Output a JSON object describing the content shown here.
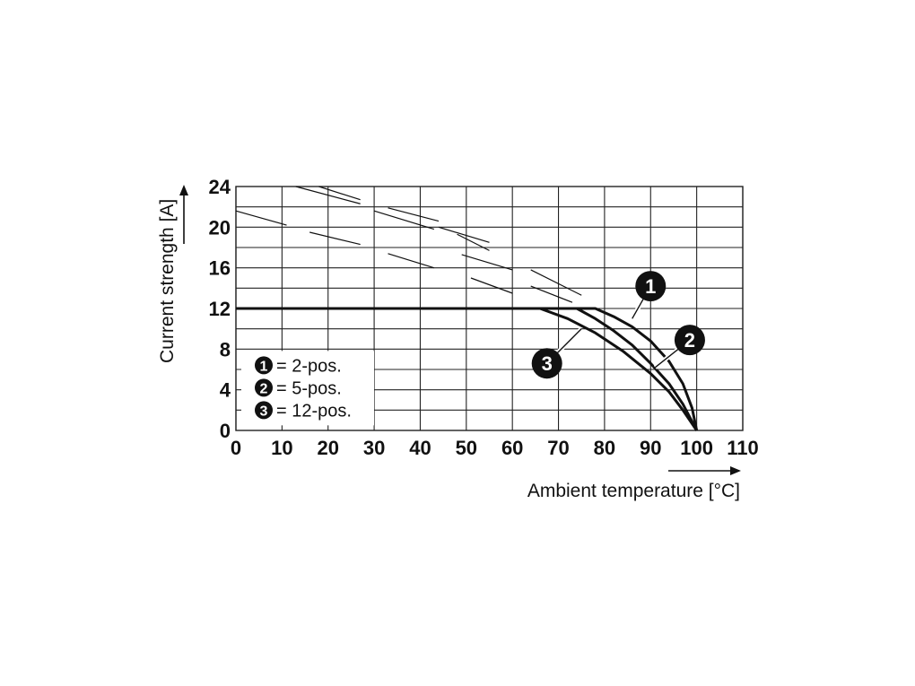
{
  "chart_data": {
    "type": "line",
    "xlabel": "Ambient temperature [°C]",
    "ylabel": "Current strength [A]",
    "xlim": [
      0,
      110
    ],
    "ylim": [
      0,
      24
    ],
    "x_ticks": [
      "0",
      "10",
      "20",
      "30",
      "40",
      "50",
      "60",
      "70",
      "80",
      "90",
      "100",
      "110"
    ],
    "y_ticks": [
      "0",
      "4",
      "8",
      "12",
      "16",
      "20",
      "24"
    ],
    "grid": true,
    "legend_position": "bottom-left",
    "legend": [
      {
        "marker": "1",
        "text": "= 2-pos."
      },
      {
        "marker": "2",
        "text": "= 5-pos."
      },
      {
        "marker": "3",
        "text": "= 12-pos."
      }
    ],
    "series": [
      {
        "marker": "1",
        "points": [
          [
            0,
            12
          ],
          [
            78,
            12
          ],
          [
            82,
            11.2
          ],
          [
            86,
            10.2
          ],
          [
            90,
            8.8
          ],
          [
            94,
            6.8
          ],
          [
            97,
            4.6
          ],
          [
            99,
            2.2
          ],
          [
            100,
            0
          ]
        ]
      },
      {
        "marker": "2",
        "points": [
          [
            0,
            12
          ],
          [
            74,
            12
          ],
          [
            78,
            11.0
          ],
          [
            82,
            9.8
          ],
          [
            86,
            8.4
          ],
          [
            90,
            6.6
          ],
          [
            94,
            4.6
          ],
          [
            97,
            2.6
          ],
          [
            100,
            0
          ]
        ]
      },
      {
        "marker": "3",
        "points": [
          [
            0,
            12
          ],
          [
            66,
            12
          ],
          [
            72,
            11.0
          ],
          [
            78,
            9.6
          ],
          [
            84,
            7.8
          ],
          [
            90,
            5.6
          ],
          [
            94,
            3.8
          ],
          [
            97,
            2.0
          ],
          [
            100,
            0
          ]
        ]
      }
    ],
    "dashed_curves": [
      {
        "points": [
          [
            0,
            21.6
          ],
          [
            11,
            20.2
          ]
        ]
      },
      {
        "points": [
          [
            13,
            24
          ],
          [
            27,
            22.3
          ]
        ]
      },
      {
        "points": [
          [
            18,
            24
          ],
          [
            27,
            22.7
          ]
        ]
      },
      {
        "points": [
          [
            16,
            19.5
          ],
          [
            27,
            18.3
          ]
        ]
      },
      {
        "points": [
          [
            30,
            21.6
          ],
          [
            43,
            19.8
          ]
        ]
      },
      {
        "points": [
          [
            33,
            21.9
          ],
          [
            44,
            20.6
          ]
        ]
      },
      {
        "points": [
          [
            44,
            20.0
          ],
          [
            55,
            18.5
          ]
        ]
      },
      {
        "points": [
          [
            48,
            19.3
          ],
          [
            55,
            17.7
          ]
        ]
      },
      {
        "points": [
          [
            33,
            17.4
          ],
          [
            43,
            16.0
          ]
        ]
      },
      {
        "points": [
          [
            49,
            17.3
          ],
          [
            60,
            15.8
          ]
        ]
      },
      {
        "points": [
          [
            51,
            15.0
          ],
          [
            60,
            13.5
          ]
        ]
      },
      {
        "points": [
          [
            64,
            15.8
          ],
          [
            75,
            13.3
          ]
        ]
      },
      {
        "points": [
          [
            64,
            14.2
          ],
          [
            73,
            12.6
          ]
        ]
      }
    ],
    "callouts": [
      {
        "marker": "1",
        "value": [
          90,
          14.2
        ],
        "leader_to": [
          86,
          11.0
        ]
      },
      {
        "marker": "2",
        "value": [
          98.5,
          8.9
        ],
        "leader_to": [
          91,
          6.2
        ]
      },
      {
        "marker": "3",
        "value": [
          67.5,
          6.6
        ],
        "leader_to": [
          75,
          10.0
        ]
      }
    ],
    "colors": {
      "line": "#111111",
      "grid": "#222222",
      "marker_fill": "#111111",
      "background": "#ffffff"
    }
  }
}
